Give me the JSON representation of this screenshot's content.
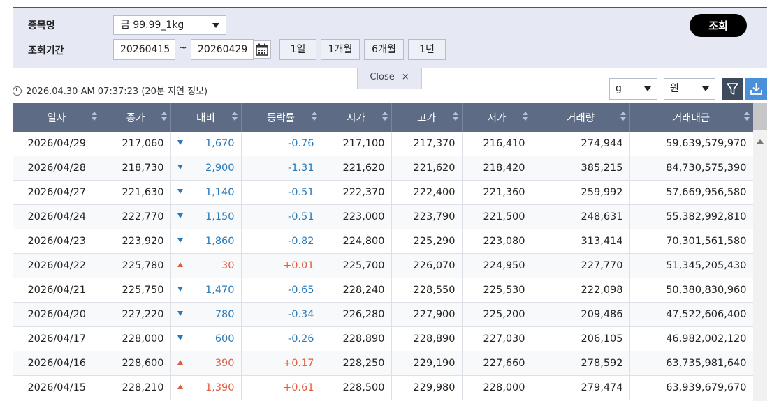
{
  "search": {
    "item_label": "종목명",
    "item_value": "금 99.99_1kg",
    "period_label": "조회기간",
    "date_from": "20260415",
    "date_to": "20260429",
    "tilde": "~",
    "periods": [
      "1일",
      "1개월",
      "6개월",
      "1년"
    ],
    "query_button": "조회"
  },
  "close_tab": {
    "label": "Close",
    "x": "×"
  },
  "info": {
    "timestamp": "2026.04.30 AM 07:37:23 (20분 지연 정보)"
  },
  "units": {
    "weight": "g",
    "currency": "원"
  },
  "table": {
    "columns": [
      "일자",
      "종가",
      "대비",
      "등락률",
      "시가",
      "고가",
      "저가",
      "거래량",
      "거래대금"
    ],
    "rows": [
      [
        "2026/04/29",
        "217,060",
        "down",
        "1,670",
        "-0.76",
        "217,100",
        "217,370",
        "216,410",
        "274,944",
        "59,639,579,970"
      ],
      [
        "2026/04/28",
        "218,730",
        "down",
        "2,900",
        "-1.31",
        "221,620",
        "221,620",
        "218,420",
        "385,215",
        "84,730,575,390"
      ],
      [
        "2026/04/27",
        "221,630",
        "down",
        "1,140",
        "-0.51",
        "222,370",
        "222,400",
        "221,360",
        "259,992",
        "57,669,956,580"
      ],
      [
        "2026/04/24",
        "222,770",
        "down",
        "1,150",
        "-0.51",
        "223,000",
        "223,790",
        "221,500",
        "248,631",
        "55,382,992,810"
      ],
      [
        "2026/04/23",
        "223,920",
        "down",
        "1,860",
        "-0.82",
        "224,800",
        "225,290",
        "223,080",
        "313,414",
        "70,301,561,580"
      ],
      [
        "2026/04/22",
        "225,780",
        "up",
        "30",
        "+0.01",
        "225,700",
        "226,070",
        "224,950",
        "227,770",
        "51,345,205,430"
      ],
      [
        "2026/04/21",
        "225,750",
        "down",
        "1,470",
        "-0.65",
        "228,240",
        "228,550",
        "225,530",
        "222,098",
        "50,380,830,960"
      ],
      [
        "2026/04/20",
        "227,220",
        "down",
        "780",
        "-0.34",
        "226,280",
        "227,900",
        "225,200",
        "209,486",
        "47,522,606,400"
      ],
      [
        "2026/04/17",
        "228,000",
        "down",
        "600",
        "-0.26",
        "228,890",
        "228,890",
        "227,030",
        "206,105",
        "46,982,002,120"
      ],
      [
        "2026/04/16",
        "228,600",
        "up",
        "390",
        "+0.17",
        "228,250",
        "229,190",
        "227,660",
        "278,592",
        "63,735,981,640"
      ],
      [
        "2026/04/15",
        "228,210",
        "up",
        "1,390",
        "+0.61",
        "228,500",
        "229,980",
        "228,000",
        "279,474",
        "63,939,679,670"
      ]
    ]
  },
  "colors": {
    "up": "#e25c3d",
    "down": "#2a7ab8",
    "header": "#5d6b85"
  }
}
